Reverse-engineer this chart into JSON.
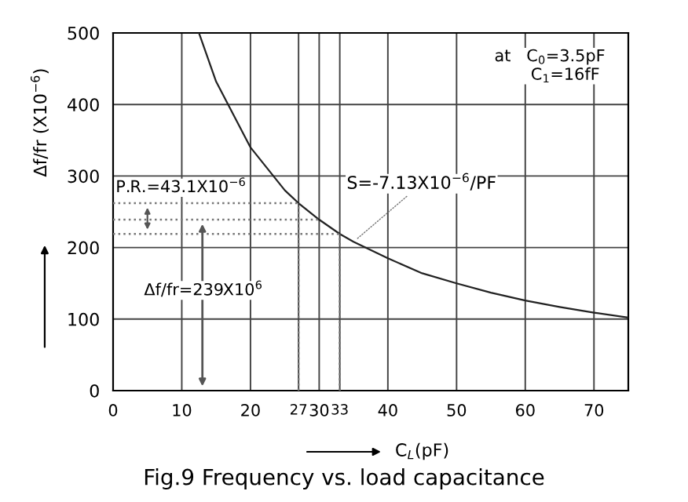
{
  "chart_data": {
    "type": "line",
    "xlabel": "C$_{L}$(pF)",
    "ylabel": "Δf/fr (X10$^{−6}$)",
    "x": [
      12.5,
      15,
      20,
      25,
      27,
      30,
      33,
      35,
      40,
      45,
      50,
      55,
      60,
      65,
      70,
      75
    ],
    "series": [
      {
        "color": "#222222",
        "values": [
          500,
          432,
          340,
          280,
          262,
          239,
          219,
          208,
          185,
          164,
          150,
          137,
          126,
          117,
          109,
          102
        ]
      },
      {
        "color": "#777777",
        "line_style": "dotted",
        "x": [
          0,
          27
        ],
        "values": [
          262,
          262
        ]
      },
      {
        "color": "#777777",
        "line_style": "dotted",
        "x": [
          0,
          30
        ],
        "values": [
          239,
          239
        ]
      },
      {
        "color": "#777777",
        "line_style": "dotted",
        "x": [
          0,
          33
        ],
        "values": [
          219,
          219
        ]
      },
      {
        "color": "#777777",
        "line_style": "dotted",
        "x": [
          27,
          27
        ],
        "values": [
          0,
          262
        ]
      },
      {
        "color": "#777777",
        "line_style": "dotted",
        "x": [
          33,
          33
        ],
        "values": [
          0,
          219
        ]
      }
    ],
    "xlim": [
      0,
      75
    ],
    "ylim": [
      0,
      500
    ],
    "xticks": [
      0,
      10,
      20,
      27,
      30,
      33,
      40,
      50,
      60,
      70
    ],
    "yticks": [
      0,
      100,
      200,
      300,
      400,
      500
    ],
    "grid": true,
    "marker": "none",
    "line_style": "solid",
    "annotations": [
      {
        "text": "S=-7.13X10$^{−6}$/PF",
        "x": 35,
        "y": 208
      },
      "P.R.=43.1X10$^{−6}$",
      "Δf/fr=239X10$^{6}$",
      "at   C$_{0}$=3.5pF\n       C$_{1}$=16fF",
      "Fig.9 Frequency vs. load capacitance"
    ]
  }
}
